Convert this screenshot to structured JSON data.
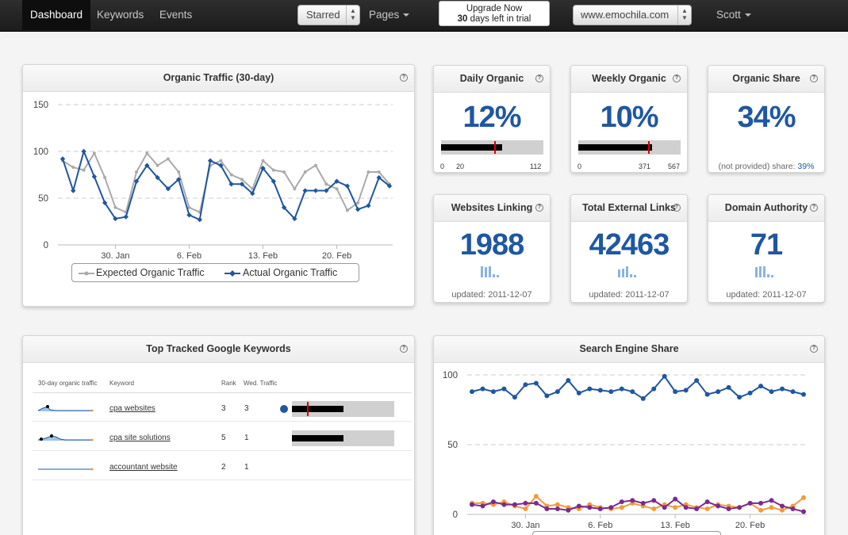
{
  "nav": {
    "dashboard": "Dashboard",
    "keywords": "Keywords",
    "events": "Events",
    "starred": "Starred",
    "pages": "Pages",
    "upgrade_line1": "Upgrade Now",
    "upgrade_days": "30",
    "upgrade_line2": " days left in trial",
    "site": "www.emochila.com",
    "user": "Scott"
  },
  "traffic": {
    "title": "Organic Traffic (30-day)",
    "legend_expected": "Expected Organic Traffic",
    "legend_actual": "Actual Organic Traffic"
  },
  "stats": {
    "daily": {
      "title": "Daily Organic",
      "value": "12%",
      "min": "0",
      "mark_label": "20",
      "max": "112",
      "bar_fraction": 0.6,
      "mark_fraction": 0.52
    },
    "weekly": {
      "title": "Weekly Organic",
      "value": "10%",
      "min": "0",
      "mark_label": "371",
      "max": "567",
      "bar_fraction": 0.72,
      "mark_fraction": 0.68
    },
    "share": {
      "title": "Organic Share",
      "value": "34%",
      "foot_label": "(not provided) share: ",
      "foot_value": "39%"
    },
    "linking": {
      "title": "Websites Linking",
      "value": "1988",
      "updated": "updated: 2011-12-07"
    },
    "external": {
      "title": "Total External Links",
      "value": "42463",
      "updated": "updated: 2011-12-07"
    },
    "authority": {
      "title": "Domain Authority",
      "value": "71",
      "updated": "updated: 2011-12-07"
    }
  },
  "keywords": {
    "title": "Top Tracked Google Keywords",
    "headers": [
      "30-day organic traffic",
      "Keyword",
      "Rank",
      "Wed. Traffic"
    ],
    "rows": [
      {
        "keyword": "cpa websites",
        "rank": "3",
        "traffic": "3",
        "bar_fraction": 0.5,
        "mark_fraction": 0.15,
        "dot": true
      },
      {
        "keyword": "cpa site solutions",
        "rank": "5",
        "traffic": "1",
        "bar_fraction": 0.5,
        "mark_fraction": null,
        "dot": false
      },
      {
        "keyword": "accountant website",
        "rank": "2",
        "traffic": "1",
        "bar_fraction": null,
        "mark_fraction": null,
        "dot": false
      }
    ]
  },
  "search_share": {
    "title": "Search Engine Share"
  },
  "colors": {
    "blue": "#1f57a0",
    "gray": "#aaaaaa",
    "orange": "#f39a3c",
    "purple": "#7b2b8f"
  },
  "chart_data": [
    {
      "type": "line",
      "title": "Organic Traffic (30-day)",
      "ylim": [
        0,
        150
      ],
      "yticks": [
        0,
        50,
        100,
        150
      ],
      "x_tick_labels": [
        "30. Jan",
        "6. Feb",
        "13. Feb",
        "20. Feb"
      ],
      "x_tick_index": [
        5,
        12,
        19,
        26
      ],
      "grid": true,
      "legend": "bottom",
      "series": [
        {
          "name": "Expected Organic Traffic",
          "color": "#aaaaaa",
          "values": [
            90,
            83,
            80,
            98,
            72,
            40,
            35,
            78,
            98,
            85,
            92,
            78,
            40,
            35,
            85,
            90,
            75,
            70,
            60,
            90,
            80,
            78,
            60,
            78,
            85,
            65,
            60,
            37,
            45,
            78,
            78,
            65
          ]
        },
        {
          "name": "Actual Organic Traffic",
          "color": "#1f57a0",
          "values": [
            92,
            58,
            100,
            73,
            45,
            28,
            30,
            68,
            85,
            72,
            60,
            70,
            32,
            27,
            90,
            85,
            65,
            65,
            55,
            82,
            68,
            40,
            28,
            58,
            58,
            58,
            68,
            63,
            38,
            42,
            72,
            63
          ]
        }
      ]
    },
    {
      "type": "line",
      "title": "Search Engine Share",
      "ylim": [
        0,
        100
      ],
      "yticks": [
        0,
        50,
        100
      ],
      "x_tick_labels": [
        "30. Jan",
        "6. Feb",
        "13. Feb",
        "20. Feb"
      ],
      "x_tick_index": [
        5,
        12,
        19,
        26
      ],
      "grid": true,
      "series": [
        {
          "color": "#1f57a0",
          "values": [
            88,
            90,
            88,
            90,
            84,
            93,
            94,
            85,
            88,
            96,
            87,
            90,
            89,
            88,
            90,
            88,
            83,
            90,
            99,
            88,
            89,
            96,
            86,
            88,
            91,
            84,
            87,
            92,
            88,
            90,
            88,
            86
          ]
        },
        {
          "color": "#f39a3c",
          "values": [
            8,
            8,
            7,
            9,
            6,
            4,
            13,
            6,
            7,
            5,
            4,
            7,
            5,
            4,
            5,
            8,
            6,
            4,
            7,
            5,
            7,
            5,
            4,
            7,
            6,
            5,
            8,
            3,
            5,
            3,
            6,
            12
          ]
        },
        {
          "color": "#7b2b8f",
          "values": [
            7,
            6,
            9,
            7,
            7,
            8,
            8,
            4,
            4,
            3,
            6,
            5,
            4,
            5,
            9,
            10,
            8,
            10,
            5,
            11,
            5,
            4,
            9,
            6,
            4,
            5,
            8,
            8,
            10,
            6,
            4,
            2
          ]
        }
      ]
    }
  ]
}
